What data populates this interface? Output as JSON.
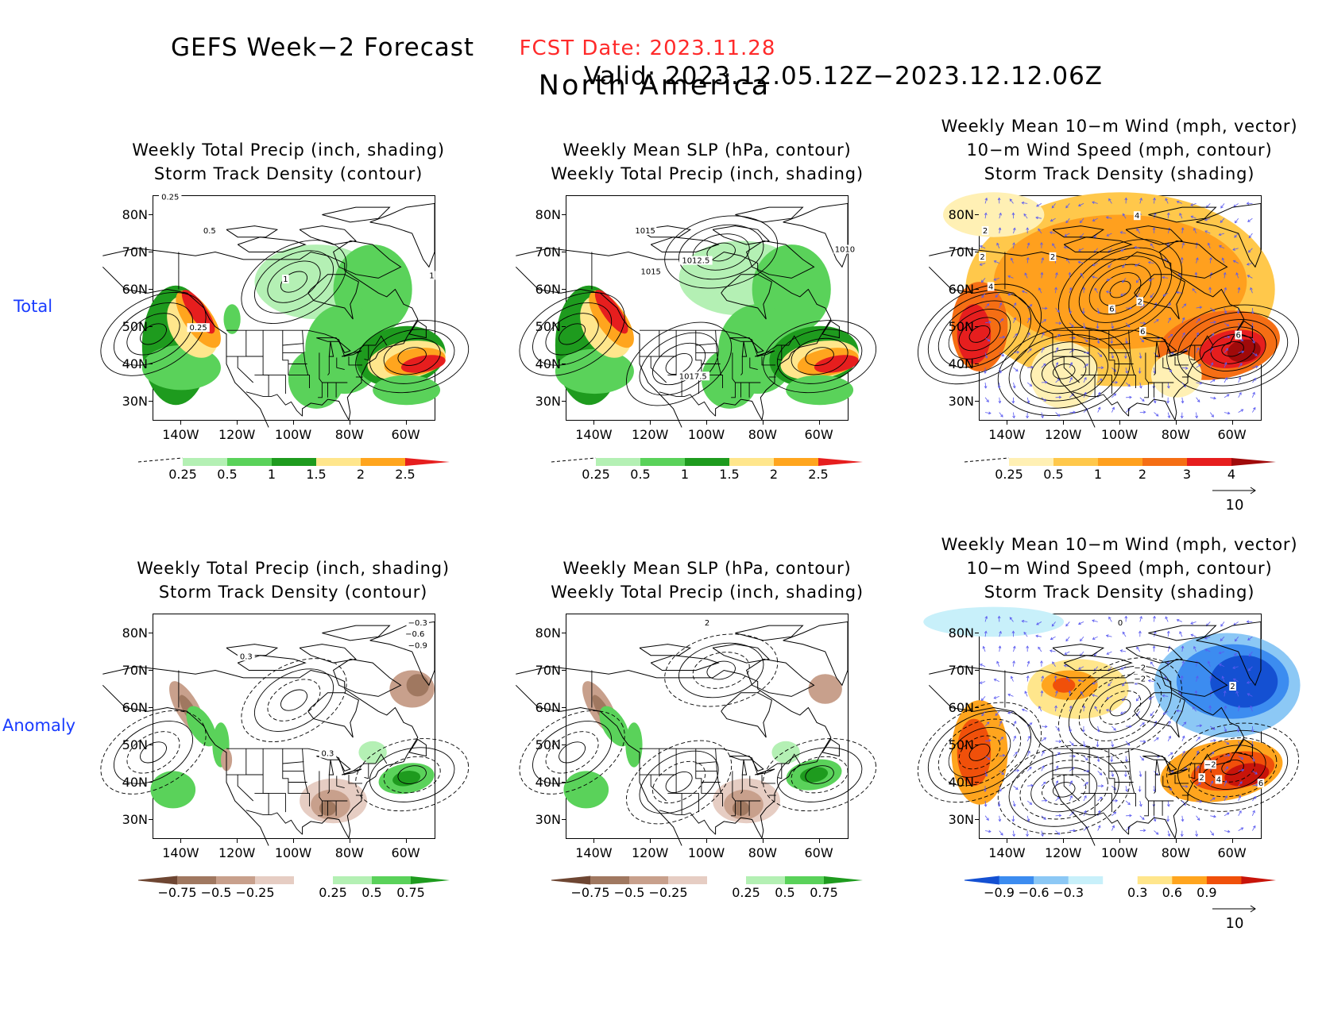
{
  "header": {
    "title_left": "GEFS Week−2 Forecast",
    "title_right": "Valid: 2023.12.05.12Z−2023.12.12.06Z",
    "fcst_date": "FCST Date: 2023.11.28",
    "region": "North America"
  },
  "rows": [
    {
      "label": "Total"
    },
    {
      "label": "Anomaly"
    }
  ],
  "axes": {
    "lat_labels": [
      "80N",
      "70N",
      "60N",
      "50N",
      "40N",
      "30N"
    ],
    "lon_labels": [
      "140W",
      "120W",
      "100W",
      "80W",
      "60W"
    ]
  },
  "panels": {
    "total_precip": {
      "title": [
        "Weekly Total Precip (inch, shading)",
        "Storm Track Density (contour)"
      ],
      "contour_labels": [
        "0.25",
        "0.5",
        "1",
        "1",
        "0.25"
      ],
      "colorbar": {
        "labels": [
          "0.25",
          "0.5",
          "1",
          "1.5",
          "2",
          "2.5"
        ],
        "colors": [
          "#ffffff",
          "#b4f0b4",
          "#5ad25a",
          "#1e9b1e",
          "#ffe68c",
          "#ffa51e",
          "#e61e1e"
        ]
      }
    },
    "total_slp": {
      "title": [
        "Weekly Mean SLP (hPa, contour)",
        "Weekly Total Precip (inch, shading)"
      ],
      "contour_labels": [
        "1015",
        "1015",
        "1012.5",
        "1010",
        "1017.5"
      ],
      "colorbar": {
        "labels": [
          "0.25",
          "0.5",
          "1",
          "1.5",
          "2",
          "2.5"
        ],
        "colors": [
          "#ffffff",
          "#b4f0b4",
          "#5ad25a",
          "#1e9b1e",
          "#ffe68c",
          "#ffa51e",
          "#e61e1e"
        ]
      }
    },
    "total_wind": {
      "title": [
        "Weekly Mean 10−m Wind (mph, vector)",
        "10−m Wind Speed (mph, contour)",
        "Storm Track Density (shading)"
      ],
      "contour_labels": [
        "4",
        "2",
        "2",
        "2",
        "4",
        "6",
        "2",
        "6",
        "6"
      ],
      "colorbar": {
        "labels": [
          "0.25",
          "0.5",
          "1",
          "2",
          "3",
          "4"
        ],
        "colors": [
          "#ffffff",
          "#fff0b4",
          "#ffc84b",
          "#ffa01e",
          "#f56e14",
          "#e61e1e",
          "#a00a0a"
        ]
      },
      "vector_ref": "10"
    },
    "anom_precip": {
      "title": [
        "Weekly Total Precip (inch, shading)",
        "Storm Track Density (contour)"
      ],
      "contour_labels": [
        "−0.3",
        "−0.6",
        "−0.9",
        "0.3",
        "0.3"
      ],
      "colorbar": {
        "labels": [
          "−0.75",
          "−0.5",
          "−0.25",
          "0.25",
          "0.5",
          "0.75"
        ],
        "colors": [
          "#6e4632",
          "#a07860",
          "#c8a08c",
          "#e6cdc3",
          "#ffffff",
          "#b4f0b4",
          "#5ad25a",
          "#1e9b1e"
        ]
      }
    },
    "anom_slp": {
      "title": [
        "Weekly Mean SLP (hPa, contour)",
        "Weekly Total Precip (inch, shading)"
      ],
      "contour_labels": [
        "2"
      ],
      "colorbar": {
        "labels": [
          "−0.75",
          "−0.5",
          "−0.25",
          "0.25",
          "0.5",
          "0.75"
        ],
        "colors": [
          "#6e4632",
          "#a07860",
          "#c8a08c",
          "#e6cdc3",
          "#ffffff",
          "#b4f0b4",
          "#5ad25a",
          "#1e9b1e"
        ]
      }
    },
    "anom_wind": {
      "title": [
        "Weekly Mean 10−m Wind (mph, vector)",
        "10−m Wind Speed (mph, contour)",
        "Storm Track Density (shading)"
      ],
      "contour_labels": [
        "0",
        "−2",
        "−2",
        "2",
        "−2",
        "2",
        "4",
        "6"
      ],
      "colorbar": {
        "labels": [
          "−0.9",
          "−0.6",
          "−0.3",
          "0.3",
          "0.6",
          "0.9"
        ],
        "colors": [
          "#1450d2",
          "#3c8cf0",
          "#8cc8f5",
          "#c8f0fa",
          "#ffffff",
          "#ffe68c",
          "#ffa51e",
          "#f0500a",
          "#c8140a"
        ]
      },
      "vector_ref": "10"
    }
  }
}
